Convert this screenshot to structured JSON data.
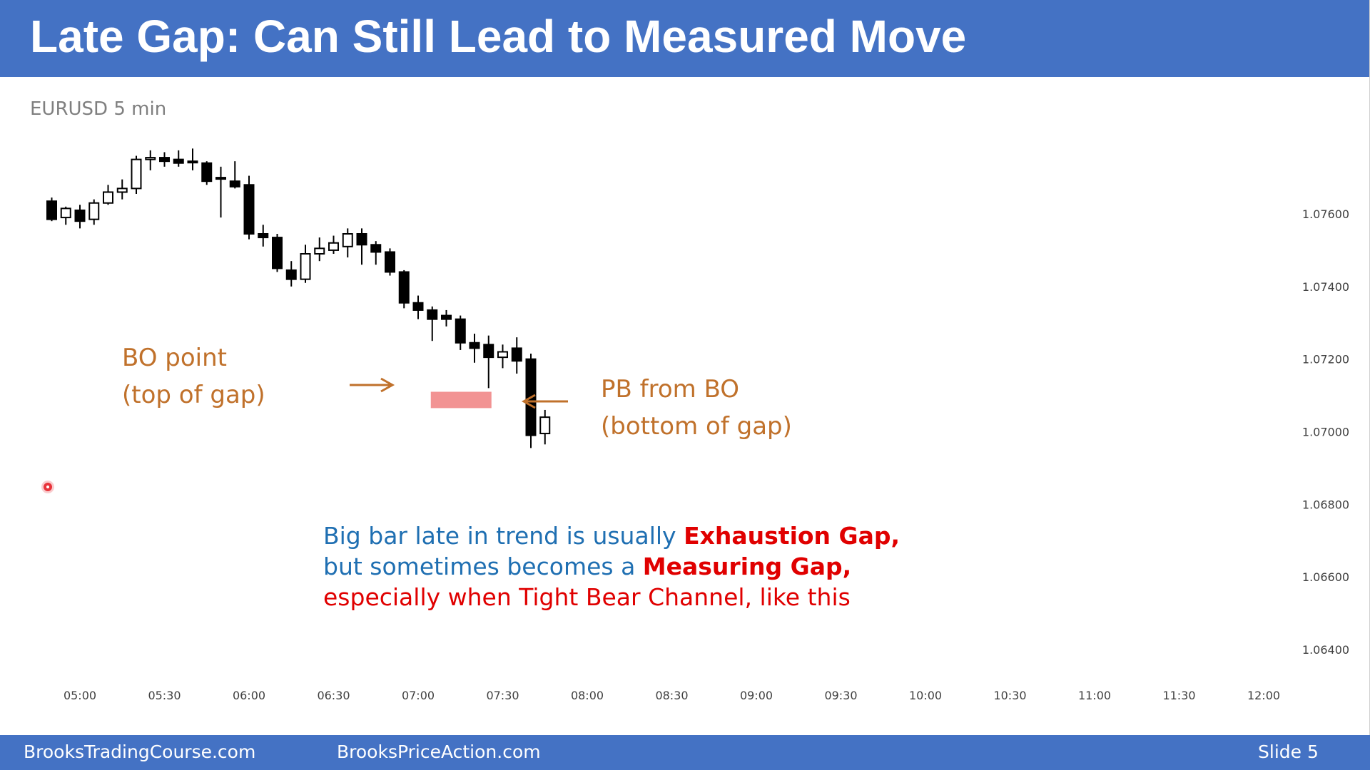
{
  "slide": {
    "title": "Late Gap: Can Still Lead to Measured Move",
    "symbol": "EURUSD 5 min",
    "footer_left": "BrooksTradingCourse.com",
    "footer_center": "BrooksPriceAction.com",
    "footer_right": "Slide  5"
  },
  "annotations": {
    "bo_point_line1": "BO point",
    "bo_point_line2": "(top of gap)",
    "pb_line1": "PB from BO",
    "pb_line2": "(bottom of gap)",
    "note_part1": "Big bar late in trend is usually ",
    "note_part2": "Exhaustion Gap,",
    "note_part3": "but sometimes becomes a ",
    "note_part4": "Measuring Gap,",
    "note_part5": "especially when Tight Bear Channel, like this"
  },
  "colors": {
    "header": "#4472c4",
    "annotation": "#c0712b",
    "note_blue": "#1f6fb2",
    "note_red": "#e00000",
    "gap_zone": "#f08080"
  },
  "chart_data": {
    "type": "candlestick",
    "symbol": "EURUSD",
    "timeframe": "5 min",
    "x_ticks": [
      "05:00",
      "05:30",
      "06:00",
      "06:30",
      "07:00",
      "07:30",
      "08:00",
      "08:30",
      "09:00",
      "09:30",
      "10:00",
      "10:30",
      "11:00",
      "11:30",
      "12:00"
    ],
    "y_ticks": [
      "1.07600",
      "1.07400",
      "1.07200",
      "1.07000",
      "1.06800",
      "1.06600",
      "1.06400"
    ],
    "ylim": [
      1.0625,
      1.0787
    ],
    "grid": false,
    "gap_zone": {
      "top": 1.0711,
      "bottom": 1.07065,
      "from_time": "07:05",
      "to_time": "07:25"
    },
    "candles": [
      {
        "time": "04:50",
        "open": 1.07635,
        "high": 1.07645,
        "low": 1.0758,
        "close": 1.07585
      },
      {
        "time": "04:55",
        "open": 1.0759,
        "high": 1.0762,
        "low": 1.0757,
        "close": 1.07615
      },
      {
        "time": "05:00",
        "open": 1.0761,
        "high": 1.07625,
        "low": 1.0756,
        "close": 1.0758
      },
      {
        "time": "05:05",
        "open": 1.07585,
        "high": 1.0764,
        "low": 1.0757,
        "close": 1.0763
      },
      {
        "time": "05:10",
        "open": 1.0763,
        "high": 1.0768,
        "low": 1.07625,
        "close": 1.0766
      },
      {
        "time": "05:15",
        "open": 1.0766,
        "high": 1.07695,
        "low": 1.0764,
        "close": 1.0767
      },
      {
        "time": "05:20",
        "open": 1.0767,
        "high": 1.0776,
        "low": 1.07655,
        "close": 1.0775
      },
      {
        "time": "05:25",
        "open": 1.0775,
        "high": 1.07775,
        "low": 1.0772,
        "close": 1.07755
      },
      {
        "time": "05:30",
        "open": 1.07755,
        "high": 1.0777,
        "low": 1.0773,
        "close": 1.07745
      },
      {
        "time": "05:35",
        "open": 1.0775,
        "high": 1.07775,
        "low": 1.0773,
        "close": 1.0774
      },
      {
        "time": "05:40",
        "open": 1.07745,
        "high": 1.0778,
        "low": 1.0772,
        "close": 1.07745
      },
      {
        "time": "05:45",
        "open": 1.0774,
        "high": 1.07745,
        "low": 1.0768,
        "close": 1.0769
      },
      {
        "time": "05:50",
        "open": 1.077,
        "high": 1.0773,
        "low": 1.0759,
        "close": 1.077
      },
      {
        "time": "05:55",
        "open": 1.0769,
        "high": 1.07745,
        "low": 1.0767,
        "close": 1.07675
      },
      {
        "time": "06:00",
        "open": 1.0768,
        "high": 1.07705,
        "low": 1.0753,
        "close": 1.07545
      },
      {
        "time": "06:05",
        "open": 1.07545,
        "high": 1.0757,
        "low": 1.0751,
        "close": 1.07535
      },
      {
        "time": "06:10",
        "open": 1.07535,
        "high": 1.07545,
        "low": 1.0744,
        "close": 1.0745
      },
      {
        "time": "06:15",
        "open": 1.07445,
        "high": 1.0747,
        "low": 1.074,
        "close": 1.0742
      },
      {
        "time": "06:20",
        "open": 1.0742,
        "high": 1.07515,
        "low": 1.0741,
        "close": 1.0749
      },
      {
        "time": "06:25",
        "open": 1.0749,
        "high": 1.07535,
        "low": 1.0747,
        "close": 1.07505
      },
      {
        "time": "06:30",
        "open": 1.075,
        "high": 1.0754,
        "low": 1.0749,
        "close": 1.0752
      },
      {
        "time": "06:35",
        "open": 1.0751,
        "high": 1.0756,
        "low": 1.0748,
        "close": 1.07545
      },
      {
        "time": "06:40",
        "open": 1.07545,
        "high": 1.0756,
        "low": 1.0746,
        "close": 1.07515
      },
      {
        "time": "06:45",
        "open": 1.07515,
        "high": 1.07525,
        "low": 1.0746,
        "close": 1.07495
      },
      {
        "time": "06:50",
        "open": 1.07495,
        "high": 1.07505,
        "low": 1.0743,
        "close": 1.0744
      },
      {
        "time": "06:55",
        "open": 1.0744,
        "high": 1.07445,
        "low": 1.0734,
        "close": 1.07355
      },
      {
        "time": "07:00",
        "open": 1.07355,
        "high": 1.07375,
        "low": 1.0731,
        "close": 1.07335
      },
      {
        "time": "07:05",
        "open": 1.07335,
        "high": 1.07345,
        "low": 1.0725,
        "close": 1.0731
      },
      {
        "time": "07:10",
        "open": 1.0732,
        "high": 1.07335,
        "low": 1.0729,
        "close": 1.0731
      },
      {
        "time": "07:15",
        "open": 1.0731,
        "high": 1.0732,
        "low": 1.07225,
        "close": 1.07245
      },
      {
        "time": "07:20",
        "open": 1.07245,
        "high": 1.0727,
        "low": 1.0719,
        "close": 1.0723
      },
      {
        "time": "07:25",
        "open": 1.0724,
        "high": 1.07265,
        "low": 1.0712,
        "close": 1.07205
      },
      {
        "time": "07:30",
        "open": 1.07205,
        "high": 1.0724,
        "low": 1.07175,
        "close": 1.0722
      },
      {
        "time": "07:35",
        "open": 1.0723,
        "high": 1.0726,
        "low": 1.0716,
        "close": 1.07195
      },
      {
        "time": "07:40",
        "open": 1.072,
        "high": 1.07215,
        "low": 1.06955,
        "close": 1.0699
      },
      {
        "time": "07:45",
        "open": 1.06995,
        "high": 1.0706,
        "low": 1.06965,
        "close": 1.0704
      }
    ]
  }
}
